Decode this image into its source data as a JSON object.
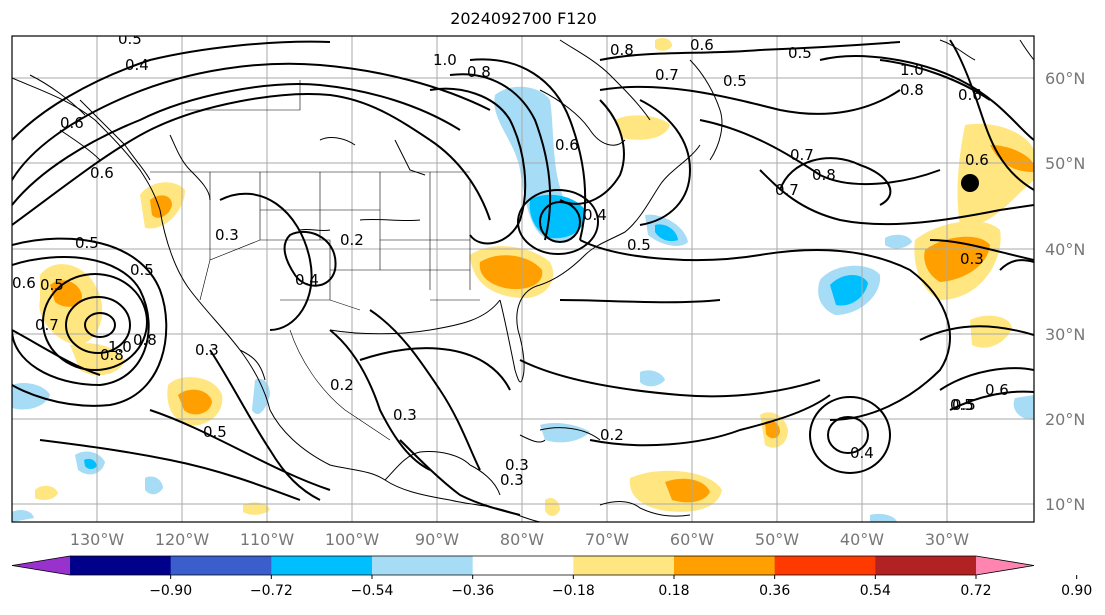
{
  "title": "2024092700 F120",
  "map": {
    "longitude_labels": [
      "130°W",
      "120°W",
      "110°W",
      "100°W",
      "90°W",
      "80°W",
      "70°W",
      "60°W",
      "50°W",
      "40°W",
      "30°W"
    ],
    "latitude_labels": [
      "60°N",
      "50°N",
      "40°N",
      "30°N",
      "20°N",
      "10°N"
    ],
    "contour_labels": [
      "0.5",
      "0.4",
      "1.0",
      "0.8",
      "0.6",
      "0.7",
      "0.5",
      "0.8",
      "0.5",
      "1.0",
      "0.8",
      "0.6",
      "0.6",
      "0.5",
      "0.7",
      "0.8",
      "0.6",
      "0.6",
      "0.4",
      "0.2",
      "0.5",
      "0.6",
      "0.4",
      "0.7",
      "0.3",
      "0.5",
      "0.8",
      "0.6",
      "0.3",
      "0.5",
      "0.3",
      "0.7",
      "0.8",
      "0.3",
      "1.0",
      "0.2",
      "0.3",
      "0.5",
      "0.2",
      "0.3",
      "0.4",
      "0.5",
      "0.6",
      "0.5"
    ],
    "marker_icon": "filled-circle-marker"
  },
  "colorbar": {
    "ticks": [
      "−0.90",
      "−0.72",
      "−0.54",
      "−0.36",
      "−0.18",
      "0.18",
      "0.36",
      "0.54",
      "0.72",
      "0.90"
    ],
    "colors": [
      "#9932cc",
      "#00008b",
      "#3a5fcd",
      "#00bfff",
      "#a6dcf5",
      "#ffffff",
      "#ffe680",
      "#ff9f00",
      "#ff3a00",
      "#b22222",
      "#ff85b0"
    ]
  }
}
